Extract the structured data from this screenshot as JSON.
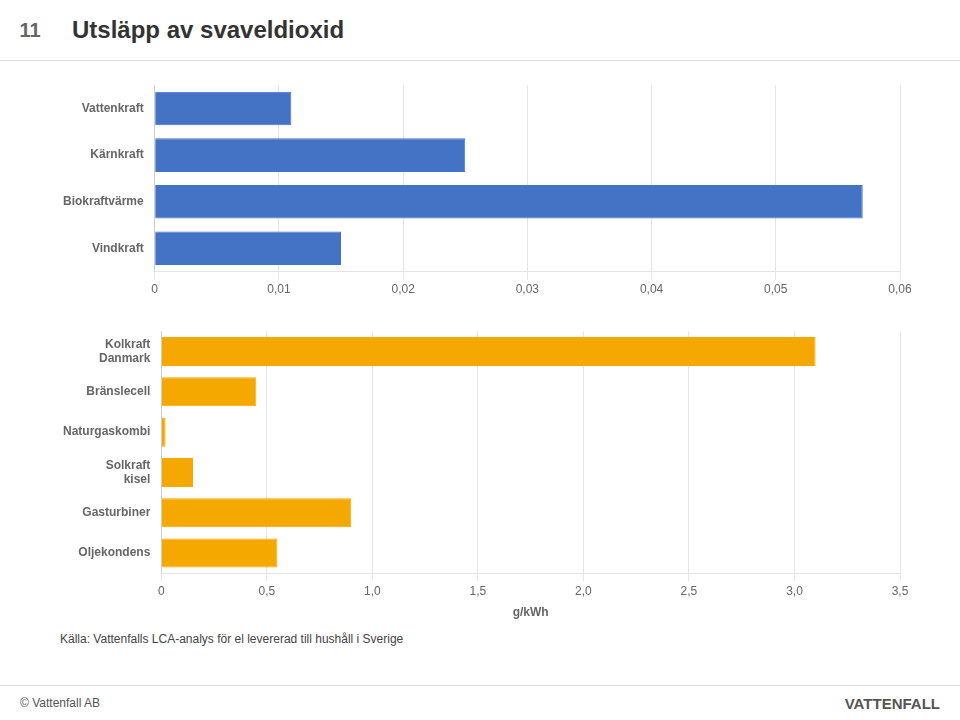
{
  "chart_data": [
    {
      "type": "bar",
      "orientation": "horizontal",
      "title": "Utsläpp av svaveldioxid",
      "annotations": [
        "11"
      ],
      "categories": [
        "Vindkraft",
        "Biokraftvärme",
        "Kärnkraft",
        "Vattenkraft"
      ],
      "values": [
        0.015,
        0.057,
        0.025,
        0.011
      ],
      "color": "#4472c4",
      "xlim": [
        0,
        0.06
      ],
      "xticks": [
        0,
        {
          "value": 0.01,
          "label": "0,01"
        },
        {
          "value": 0.02,
          "label": "0,02"
        },
        {
          "value": 0.03,
          "label": "0,03"
        },
        {
          "value": 0.04,
          "label": "0,04"
        },
        {
          "value": 0.05,
          "label": "0,05"
        },
        {
          "value": 0.06,
          "label": "0,06"
        }
      ],
      "grid": true
    },
    {
      "type": "bar",
      "orientation": "horizontal",
      "xlabel": "g/kWh",
      "annotations": [
        "Källa: Vattenfalls LCA-analys för el levererad till hushåll i Sverige",
        "© Vattenfall AB",
        "VATTENFALL"
      ],
      "categories": [
        "Oljekondens",
        "Gasturbiner",
        "Solkraft\nkisel",
        "Naturgaskombi",
        "Bränslecell",
        "Kolkraft\nDanmark"
      ],
      "values": [
        0.55,
        0.9,
        0.15,
        0.02,
        0.45,
        3.1
      ],
      "color": "#f5a800",
      "xlim": [
        0,
        3.5
      ],
      "xticks": [
        0,
        {
          "value": 0.5,
          "label": "0,5"
        },
        {
          "value": 1.0,
          "label": "1,0"
        },
        {
          "value": 1.5,
          "label": "1,5"
        },
        {
          "value": 2.0,
          "label": "2,0"
        },
        {
          "value": 2.5,
          "label": "2,5"
        },
        {
          "value": 3.0,
          "label": "3,0"
        },
        {
          "value": 3.5,
          "label": "3,5"
        }
      ],
      "grid": true
    }
  ]
}
